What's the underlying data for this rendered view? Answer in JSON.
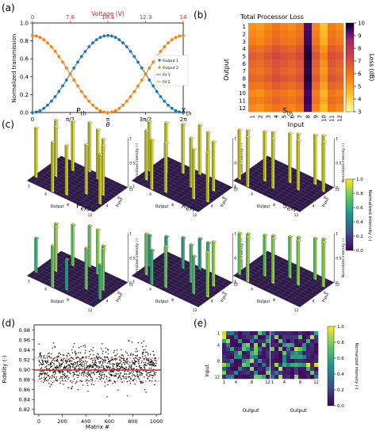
{
  "panels": {
    "a": {
      "label": "(a)"
    },
    "b": {
      "label": "(b)"
    },
    "c": {
      "label": "(c)"
    },
    "d": {
      "label": "(d)"
    },
    "e": {
      "label": "(e)"
    }
  },
  "bars3d": {
    "zlabel": "Normalized intensity (-)",
    "xlabel": "Output",
    "ylabel": "Input",
    "ticks_output": [
      "1",
      "4",
      "8",
      "12"
    ],
    "ticks_input": [
      "4",
      "8",
      "12"
    ],
    "ticks_z": [
      "0",
      "0.5",
      "1"
    ],
    "sub_th": "th",
    "sub_exp": "exp",
    "titles": [
      "P",
      "X",
      "S",
      "P",
      "X",
      "S"
    ]
  },
  "colorbar_c": {
    "label": "Normalized intensity (-)",
    "ticks": [
      "1.0",
      "0.8",
      "0.6",
      "0.4",
      "0.2",
      "0.0"
    ]
  },
  "colorbar_e": {
    "label": "Normalized intensity (-)",
    "ticks": [
      "1.0",
      "0.8",
      "0.6",
      "0.4",
      "0.2",
      "0.0"
    ]
  },
  "colors": {
    "output1": "#1f77b4",
    "output2": "#ff7f0e",
    "fit1": "#1f77b4",
    "fit2": "#ff7f0e",
    "voltage_axis": "#e8211b",
    "fidelity_mean": "#d62728"
  },
  "chart_data": [
    {
      "type": "line",
      "panel": "a",
      "ylabel": "Normalized transmission",
      "xlabel": "θ",
      "top_axis_label": "Voltage (V)",
      "top_ticks": [
        "0",
        "7.8",
        "10.4",
        "12.3",
        "14"
      ],
      "x_ticks": [
        "0",
        "π/2",
        "π",
        "3π/2",
        "2π"
      ],
      "y_ticks": [
        "0.0",
        "0.2",
        "0.4",
        "0.6",
        "0.8",
        "1.0"
      ],
      "xlim": [
        0,
        6.2832
      ],
      "ylim": [
        0,
        1
      ],
      "legend": [
        "Output 1",
        "Output 2",
        "Fit 1",
        "Fit 2"
      ],
      "legend_position": "right",
      "series": [
        {
          "name": "Output 1",
          "kind": "points",
          "model": "0.43*(1-cos(x))",
          "x": [
            0,
            0.157,
            0.314,
            0.471,
            0.628,
            0.785,
            0.942,
            1.1,
            1.257,
            1.414,
            1.571,
            1.728,
            1.885,
            2.042,
            2.199,
            2.356,
            2.513,
            2.67,
            2.827,
            2.985,
            3.142,
            3.299,
            3.456,
            3.613,
            3.77,
            3.927,
            4.084,
            4.241,
            4.398,
            4.555,
            4.712,
            4.869,
            5.027,
            5.184,
            5.341,
            5.498,
            5.655,
            5.812,
            5.969,
            6.126,
            6.283
          ]
        },
        {
          "name": "Output 2",
          "kind": "points",
          "model": "0.43*(1+cos(x))",
          "x": [
            0,
            0.157,
            0.314,
            0.471,
            0.628,
            0.785,
            0.942,
            1.1,
            1.257,
            1.414,
            1.571,
            1.728,
            1.885,
            2.042,
            2.199,
            2.356,
            2.513,
            2.67,
            2.827,
            2.985,
            3.142,
            3.299,
            3.456,
            3.613,
            3.77,
            3.927,
            4.084,
            4.241,
            4.398,
            4.555,
            4.712,
            4.869,
            5.027,
            5.184,
            5.341,
            5.498,
            5.655,
            5.812,
            5.969,
            6.126,
            6.283
          ]
        },
        {
          "name": "Fit 1",
          "kind": "line"
        },
        {
          "name": "Fit 2",
          "kind": "line"
        }
      ]
    },
    {
      "type": "heatmap",
      "panel": "b",
      "title": "Total Processor Loss",
      "xlabel": "Input",
      "ylabel": "Output",
      "colorbar_label": "Loss (dB)",
      "colorbar_ticks": [
        3,
        4,
        5,
        6,
        7,
        8,
        9,
        10
      ],
      "vmin": 3,
      "vmax": 10,
      "row_labels": [
        "1",
        "2",
        "3",
        "4",
        "5",
        "6",
        "7",
        "8",
        "9",
        "10",
        "11",
        "12"
      ],
      "col_labels": [
        "1",
        "2",
        "3",
        "4",
        "5",
        "6",
        "7",
        "8",
        "9",
        "10",
        "11",
        "12"
      ],
      "col_loss": [
        5.8,
        5.6,
        6.0,
        6.4,
        6.1,
        5.9,
        6.3,
        9.5,
        6.0,
        4.8,
        6.2,
        5.9
      ],
      "row_offset": [
        -0.4,
        -0.2,
        0.0,
        0.5,
        0.9,
        0.6,
        0.4,
        0.7,
        0.3,
        -0.2,
        0.1,
        -0.3
      ]
    },
    {
      "type": "scatter",
      "panel": "d",
      "xlabel": "Matrix #",
      "ylabel": "Fidelity (-)",
      "x_ticks": [
        0,
        200,
        400,
        600,
        800,
        1000
      ],
      "y_ticks": [
        0.82,
        0.84,
        0.86,
        0.88,
        0.9,
        0.92,
        0.94,
        0.96,
        0.98
      ],
      "xlim": [
        -40,
        1040
      ],
      "ylim": [
        0.81,
        0.99
      ],
      "n_points": 1000,
      "mean": 0.905,
      "std": 0.024
    },
    {
      "type": "heatmap",
      "panel": "e",
      "xlabel": "Output",
      "ylabel": "Input",
      "x_ticks": [
        "1",
        "4",
        "8",
        "12"
      ],
      "y_ticks": [
        "1",
        "4",
        "8",
        "12"
      ],
      "colorbar_label": "Normalized intensity (-)",
      "vmin": 0,
      "vmax": 1,
      "note": "two 12x12 matrices side by side"
    }
  ]
}
